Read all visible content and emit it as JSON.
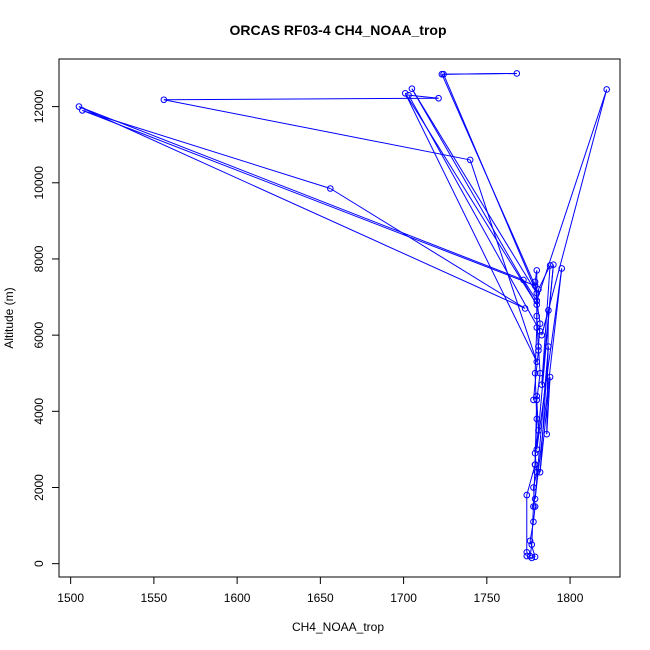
{
  "chart_data": {
    "type": "line",
    "title": "ORCAS RF03-4 CH4_NOAA_trop",
    "xlabel": "CH4_NOAA_trop",
    "ylabel": "Altitude (m)",
    "xlim": [
      1493,
      1830
    ],
    "ylim": [
      -350,
      13250
    ],
    "x_ticks": [
      1500,
      1550,
      1600,
      1650,
      1700,
      1750,
      1800
    ],
    "y_ticks": [
      0,
      2000,
      4000,
      6000,
      8000,
      10000,
      12000
    ],
    "series": [
      {
        "color": "#0000ff",
        "points": [
          [
            1774,
            200
          ],
          [
            1777,
            150
          ],
          [
            1779,
            180
          ],
          [
            1776,
            600
          ],
          [
            1778,
            1100
          ],
          [
            1779,
            1500
          ],
          [
            1778,
            2000
          ],
          [
            1780,
            2400
          ],
          [
            1779,
            2900
          ],
          [
            1781,
            3500
          ],
          [
            1780,
            4300
          ],
          [
            1782,
            5000
          ],
          [
            1781,
            5700
          ],
          [
            1782,
            6300
          ],
          [
            1780,
            6900
          ],
          [
            1779,
            7400
          ],
          [
            1780,
            7700
          ],
          [
            1780,
            6200
          ],
          [
            1779,
            5000
          ],
          [
            1780,
            3800
          ],
          [
            1779,
            2600
          ],
          [
            1778,
            1500
          ],
          [
            1777,
            500
          ],
          [
            1776,
            200
          ],
          [
            1774,
            300
          ],
          [
            1774,
            1800
          ],
          [
            1779,
            2600
          ],
          [
            1780,
            4400
          ],
          [
            1778,
            4300
          ],
          [
            1781,
            5600
          ],
          [
            1780,
            6500
          ],
          [
            1781,
            7200
          ],
          [
            1788,
            7830
          ],
          [
            1783,
            4700
          ],
          [
            1790,
            7850
          ],
          [
            1780,
            3000
          ],
          [
            1795,
            7750
          ],
          [
            1779,
            1700
          ],
          [
            1787,
            5700
          ],
          [
            1782,
            2400
          ],
          [
            1788,
            4900
          ],
          [
            1786,
            3400
          ],
          [
            1787,
            6650
          ],
          [
            1783,
            6000
          ],
          [
            1822,
            12450
          ],
          [
            1780,
            6900
          ],
          [
            1772,
            7450
          ],
          [
            1505,
            12000
          ],
          [
            1773,
            6700
          ],
          [
            1656,
            9850
          ],
          [
            1507,
            11900
          ],
          [
            1779,
            7300
          ],
          [
            1723,
            12850
          ],
          [
            1768,
            12870
          ],
          [
            1724,
            12850
          ],
          [
            1780,
            7100
          ],
          [
            1705,
            12470
          ],
          [
            1780,
            6800
          ],
          [
            1701,
            12350
          ],
          [
            1780,
            5300
          ],
          [
            1740,
            10600
          ],
          [
            1556,
            12180
          ],
          [
            1721,
            12220
          ],
          [
            1703,
            12300
          ],
          [
            1782,
            6100
          ]
        ]
      }
    ]
  }
}
